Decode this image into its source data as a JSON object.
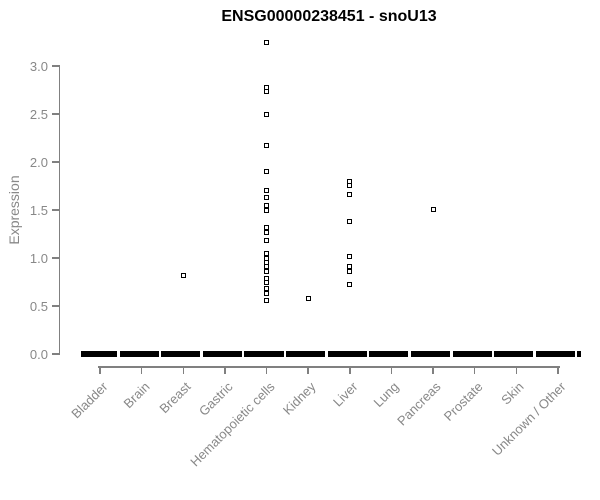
{
  "chart_data": {
    "type": "scatter",
    "title": "ENSG00000238451 - snoU13",
    "ylabel": "Expression",
    "xlabel": "",
    "ylim": [
      0,
      3.3
    ],
    "grid": false,
    "legend": "none",
    "point_symbol": "open-square",
    "yticks": [
      "0.0",
      "0.5",
      "1.0",
      "1.5",
      "2.0",
      "2.5",
      "3.0"
    ],
    "ytick_values": [
      0,
      0.5,
      1.0,
      1.5,
      2.0,
      2.5,
      3.0
    ],
    "categories": [
      "Bladder",
      "Brain",
      "Breast",
      "Gastric",
      "Hematopoietic cells",
      "Kidney",
      "Liver",
      "Lung",
      "Pancreas",
      "Prostate",
      "Skin",
      "Unknown / Other"
    ],
    "series": [
      {
        "category": "Bladder",
        "nonzero_values": [],
        "zero_cluster": true
      },
      {
        "category": "Brain",
        "nonzero_values": [],
        "zero_cluster": true
      },
      {
        "category": "Breast",
        "nonzero_values": [
          0.82
        ],
        "zero_cluster": true
      },
      {
        "category": "Gastric",
        "nonzero_values": [],
        "zero_cluster": true
      },
      {
        "category": "Hematopoietic cells",
        "nonzero_values": [
          3.25,
          2.78,
          2.73,
          2.5,
          2.17,
          1.9,
          1.7,
          1.63,
          1.55,
          1.5,
          1.32,
          1.27,
          1.18,
          1.05,
          1.0,
          0.95,
          0.91,
          0.86,
          0.79,
          0.75,
          0.68,
          0.63,
          0.56
        ],
        "zero_cluster": true
      },
      {
        "category": "Kidney",
        "nonzero_values": [
          0.58
        ],
        "zero_cluster": true
      },
      {
        "category": "Liver",
        "nonzero_values": [
          1.8,
          1.76,
          1.66,
          1.38,
          1.02,
          0.91,
          0.86,
          0.72
        ],
        "zero_cluster": true
      },
      {
        "category": "Lung",
        "nonzero_values": [],
        "zero_cluster": true
      },
      {
        "category": "Pancreas",
        "nonzero_values": [
          1.51
        ],
        "zero_cluster": true
      },
      {
        "category": "Prostate",
        "nonzero_values": [],
        "zero_cluster": true
      },
      {
        "category": "Skin",
        "nonzero_values": [],
        "zero_cluster": true
      },
      {
        "category": "Unknown / Other",
        "nonzero_values": [],
        "zero_cluster": true
      }
    ],
    "colors": {
      "point": "#000000",
      "zero_cluster": "#000000",
      "axis": "#808080",
      "tick_label": "#888888",
      "title": "#000000"
    }
  }
}
